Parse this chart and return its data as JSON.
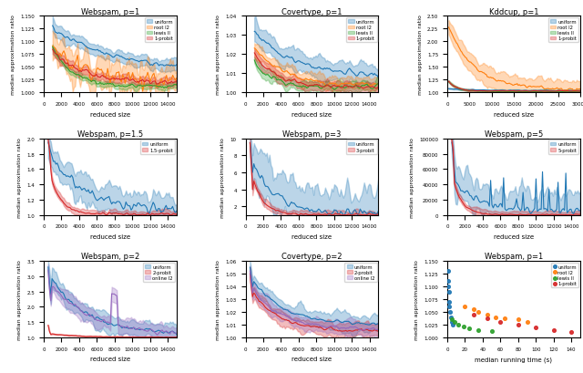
{
  "subplots": [
    {
      "title": "Webspam, p=1",
      "xlabel": "reduced size",
      "ylabel": "median approximation ratio",
      "xlim": [
        0,
        15000
      ],
      "ylim": [
        1.0,
        1.15
      ],
      "legend": [
        "uniform",
        "root l2",
        "lewis ll",
        "1-probit"
      ],
      "colors": [
        "#1f77b4",
        "#ff7f0e",
        "#2ca02c",
        "#d62728"
      ],
      "row": 0,
      "col": 0
    },
    {
      "title": "Covertype, p=1",
      "xlabel": "reduced size",
      "ylabel": "median approximation ratio",
      "xlim": [
        0,
        15000
      ],
      "ylim": [
        1.0,
        1.04
      ],
      "legend": [
        "uniform",
        "root l2",
        "lewis ll",
        "1-probit"
      ],
      "colors": [
        "#1f77b4",
        "#ff7f0e",
        "#2ca02c",
        "#d62728"
      ],
      "row": 0,
      "col": 1
    },
    {
      "title": "Kddcup, p=1",
      "xlabel": "reduced size",
      "ylabel": "median approximation ratio",
      "xlim": [
        0,
        30000
      ],
      "ylim": [
        1.0,
        2.5
      ],
      "legend": [
        "uniform",
        "root l2",
        "lewis ll",
        "1-probit"
      ],
      "colors": [
        "#1f77b4",
        "#ff7f0e",
        "#2ca02c",
        "#d62728"
      ],
      "row": 0,
      "col": 2
    },
    {
      "title": "Webspam, p=1.5",
      "xlabel": "reduced size",
      "ylabel": "median approximation ratio",
      "xlim": [
        0,
        15000
      ],
      "ylim": [
        1.0,
        2.0
      ],
      "legend": [
        "uniform",
        "1.5-probit"
      ],
      "colors": [
        "#1f77b4",
        "#d62728"
      ],
      "row": 1,
      "col": 0
    },
    {
      "title": "Webspam, p=3",
      "xlabel": "reduced size",
      "ylabel": "median approximation ratio",
      "xlim": [
        0,
        15000
      ],
      "ylim": [
        1.0,
        10.0
      ],
      "legend": [
        "uniform",
        "3-probit"
      ],
      "colors": [
        "#1f77b4",
        "#d62728"
      ],
      "row": 1,
      "col": 1
    },
    {
      "title": "Webspam, p=5",
      "xlabel": "reduced size",
      "ylabel": "median approximation ratio",
      "xlim": [
        0,
        15000
      ],
      "ylim": [
        0,
        100000
      ],
      "legend": [
        "uniform",
        "5-probit"
      ],
      "colors": [
        "#1f77b4",
        "#d62728"
      ],
      "row": 1,
      "col": 2
    },
    {
      "title": "Webspam, p=2",
      "xlabel": "reduced size",
      "ylabel": "median approximation ratio",
      "xlim": [
        0,
        15000
      ],
      "ylim": [
        1.0,
        3.5
      ],
      "legend": [
        "uniform",
        "2-probit",
        "online l2"
      ],
      "colors": [
        "#1f77b4",
        "#d62728",
        "#9467bd"
      ],
      "row": 2,
      "col": 0
    },
    {
      "title": "Covertype, p=2",
      "xlabel": "reduced size",
      "ylabel": "median approximation ratio",
      "xlim": [
        0,
        15000
      ],
      "ylim": [
        1.0,
        1.06
      ],
      "legend": [
        "uniform",
        "2-probit",
        "online l2"
      ],
      "colors": [
        "#1f77b4",
        "#d62728",
        "#9467bd"
      ],
      "row": 2,
      "col": 1
    },
    {
      "title": "Webspam, p=1",
      "xlabel": "median running time (s)",
      "ylabel": "median approximation ratio",
      "scatter": true,
      "xlim": [
        0,
        150
      ],
      "ylim": [
        1.0,
        1.15
      ],
      "legend": [
        "uniform",
        "root l2",
        "lewis ll",
        "1-probit"
      ],
      "colors": [
        "#1f77b4",
        "#ff7f0e",
        "#2ca02c",
        "#d62728"
      ],
      "row": 2,
      "col": 2
    }
  ]
}
